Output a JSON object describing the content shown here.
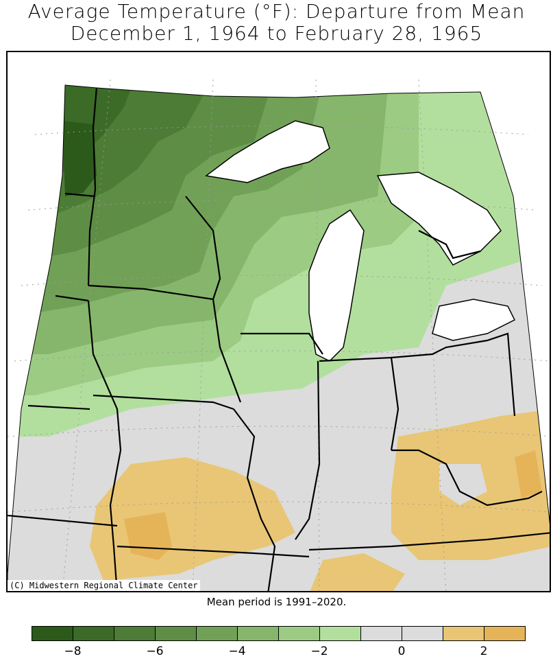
{
  "title_line1": "Average Temperature (°F): Departure from Mean",
  "title_line2": "December 1, 1964 to February 28, 1965",
  "credit": "(C) Midwestern Regional Climate Center",
  "mean_note": "Mean period is 1991–2020.",
  "legend": {
    "bins": [
      {
        "min": -9,
        "max": -8,
        "color": "#2b5a1a"
      },
      {
        "min": -8,
        "max": -7,
        "color": "#3b6b27"
      },
      {
        "min": -7,
        "max": -6,
        "color": "#4c7c35"
      },
      {
        "min": -6,
        "max": -5,
        "color": "#5e8e45"
      },
      {
        "min": -5,
        "max": -4,
        "color": "#71a157"
      },
      {
        "min": -4,
        "max": -3,
        "color": "#86b66b"
      },
      {
        "min": -3,
        "max": -2,
        "color": "#9ccb84"
      },
      {
        "min": -2,
        "max": -1,
        "color": "#b2df9e"
      },
      {
        "min": -1,
        "max": 0,
        "color": "#dcdcdc"
      },
      {
        "min": 0,
        "max": 1,
        "color": "#dcdcdc"
      },
      {
        "min": 1,
        "max": 2,
        "color": "#e8c675"
      },
      {
        "min": 2,
        "max": 3,
        "color": "#e6b458"
      }
    ],
    "ticks": [
      "−8",
      "−6",
      "−4",
      "−2",
      "0",
      "2"
    ],
    "tick_values": [
      -8,
      -6,
      -4,
      -2,
      0,
      2
    ]
  },
  "colors": {
    "lake": "#ffffff",
    "border": "#000000",
    "grid": "#9a9a9a"
  }
}
